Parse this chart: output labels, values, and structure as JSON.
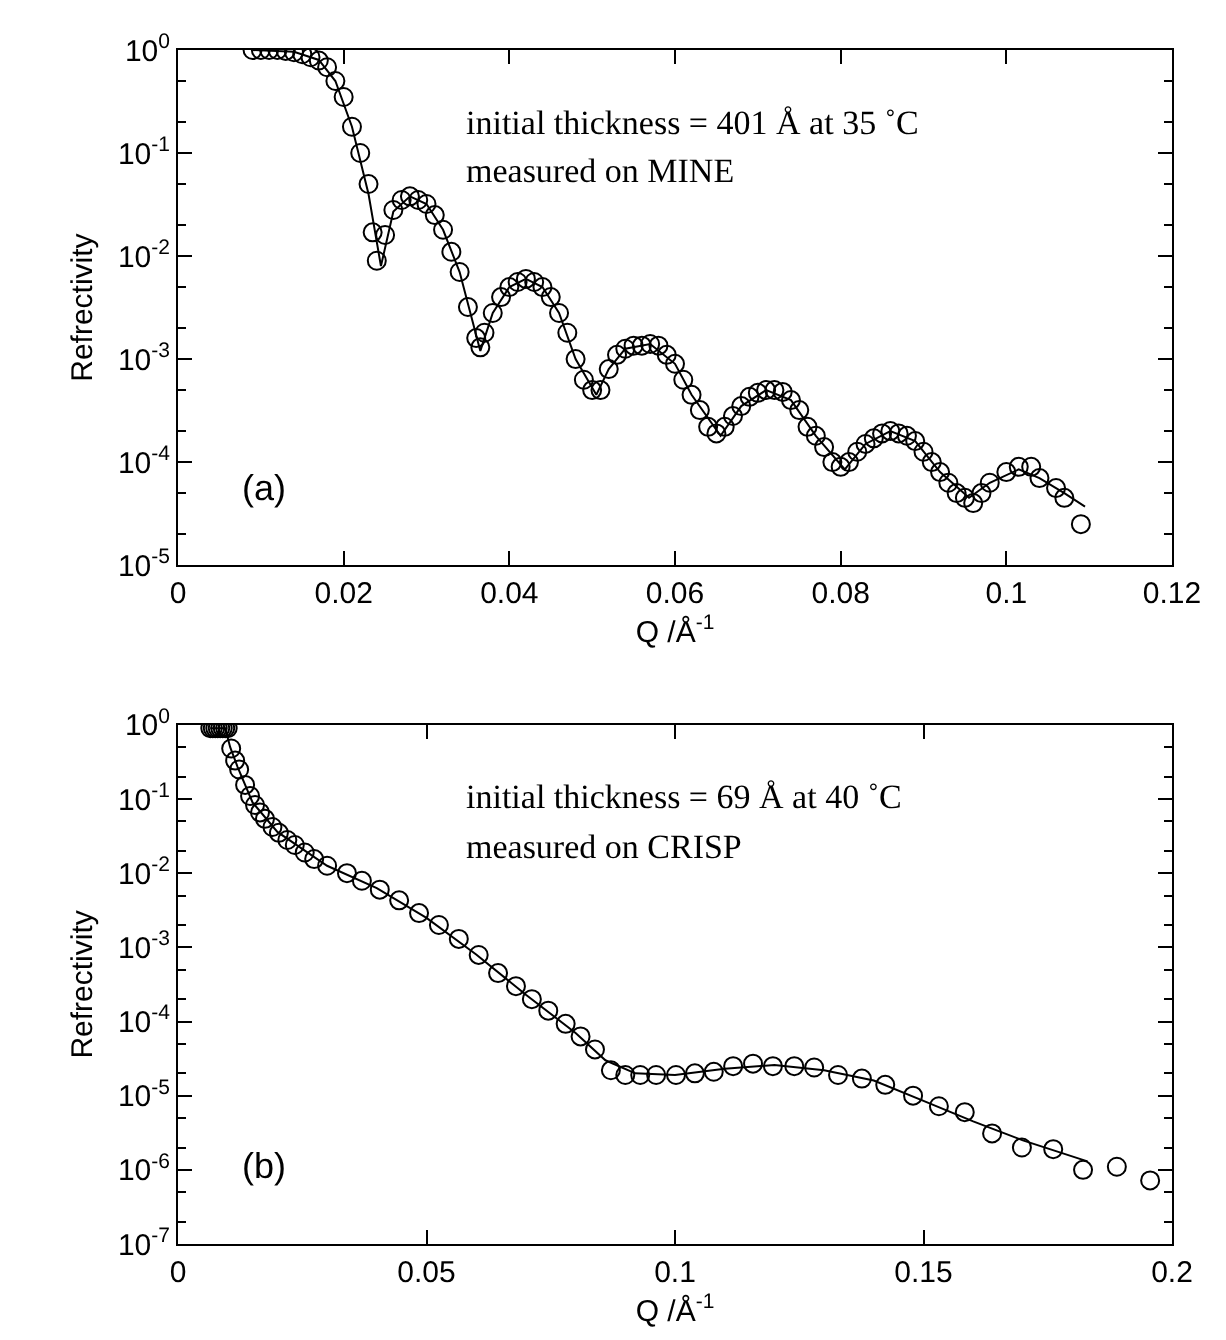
{
  "chart_data": [
    {
      "type": "scatter",
      "xlabel": "Q /Å$^{-1}$",
      "ylabel": "Refrectivity",
      "log": "y",
      "line_style": "solid",
      "annotations": [
        "initial thickness = 401 Å at 35 ˚C",
        "measured on MINE",
        "(a)"
      ],
      "xlim": [
        0,
        0.12
      ],
      "xticks": [
        0,
        0.02,
        0.04,
        0.06,
        0.08,
        0.1,
        0.12
      ],
      "ylim": [
        1e-05,
        1
      ],
      "yticks": [
        {
          "value": 1e-05,
          "label": "10$^{-5}$"
        },
        {
          "value": 0.0001,
          "label": "10$^{-4}$"
        },
        {
          "value": 0.001,
          "label": "10$^{-3}$"
        },
        {
          "value": 0.01,
          "label": "10$^{-2}$"
        },
        {
          "value": 0.1,
          "label": "10$^{-1}$"
        },
        {
          "value": 1,
          "label": "10$^{0}$"
        }
      ],
      "series": [
        {
          "marker": "circle",
          "color": "#000000",
          "x": [
            0.009,
            0.01,
            0.011,
            0.012,
            0.013,
            0.014,
            0.015,
            0.016,
            0.017,
            0.018,
            0.019,
            0.02,
            0.021,
            0.022,
            0.023,
            0.0235,
            0.024,
            0.025,
            0.026,
            0.027,
            0.028,
            0.029,
            0.03,
            0.031,
            0.032,
            0.033,
            0.034,
            0.035,
            0.036,
            0.0365,
            0.037,
            0.038,
            0.039,
            0.04,
            0.041,
            0.042,
            0.043,
            0.044,
            0.045,
            0.046,
            0.047,
            0.048,
            0.049,
            0.05,
            0.051,
            0.052,
            0.053,
            0.054,
            0.055,
            0.056,
            0.057,
            0.058,
            0.059,
            0.06,
            0.061,
            0.062,
            0.063,
            0.064,
            0.065,
            0.066,
            0.067,
            0.068,
            0.069,
            0.07,
            0.071,
            0.072,
            0.073,
            0.074,
            0.075,
            0.076,
            0.077,
            0.078,
            0.079,
            0.08,
            0.081,
            0.082,
            0.083,
            0.084,
            0.085,
            0.086,
            0.087,
            0.088,
            0.089,
            0.09,
            0.091,
            0.092,
            0.093,
            0.094,
            0.095,
            0.096,
            0.097,
            0.098,
            0.1,
            0.1015,
            0.103,
            0.104,
            0.106,
            0.107,
            0.109
          ],
          "values": [
            1,
            1,
            1,
            1,
            0.98,
            0.95,
            0.91,
            0.85,
            0.79,
            0.68,
            0.5,
            0.35,
            0.18,
            0.1,
            0.05,
            0.017,
            0.009,
            0.016,
            0.028,
            0.035,
            0.038,
            0.035,
            0.032,
            0.025,
            0.018,
            0.011,
            0.007,
            0.0032,
            0.0016,
            0.0013,
            0.0018,
            0.0028,
            0.004,
            0.005,
            0.0056,
            0.006,
            0.0056,
            0.005,
            0.004,
            0.0028,
            0.0018,
            0.001,
            0.00063,
            0.0005,
            0.0005,
            0.0008,
            0.0011,
            0.00126,
            0.00135,
            0.00135,
            0.0014,
            0.00135,
            0.0011,
            0.0009,
            0.00063,
            0.00045,
            0.00032,
            0.00022,
            0.00019,
            0.00022,
            0.00028,
            0.00035,
            0.00043,
            0.00047,
            0.0005,
            0.0005,
            0.00048,
            0.0004,
            0.00032,
            0.00022,
            0.00018,
            0.00014,
            0.0001,
            9e-05,
            0.0001,
            0.000126,
            0.00015,
            0.00017,
            0.00019,
            0.0002,
            0.00019,
            0.00018,
            0.00016,
            0.000126,
            0.0001,
            8e-05,
            6.3e-05,
            5e-05,
            4.5e-05,
            4e-05,
            5e-05,
            6.3e-05,
            8e-05,
            9e-05,
            9e-05,
            7e-05,
            5.6e-05,
            4.5e-05,
            2.5e-05
          ]
        },
        {
          "type": "line",
          "color": "#000000",
          "x": [
            0.009,
            0.014,
            0.017,
            0.019,
            0.021,
            0.023,
            0.0245,
            0.026,
            0.028,
            0.03,
            0.032,
            0.034,
            0.0365,
            0.038,
            0.04,
            0.042,
            0.044,
            0.046,
            0.048,
            0.0505,
            0.052,
            0.054,
            0.057,
            0.06,
            0.062,
            0.0655,
            0.068,
            0.071,
            0.074,
            0.077,
            0.0805,
            0.083,
            0.086,
            0.089,
            0.092,
            0.0955,
            0.098,
            0.1015,
            0.104,
            0.107,
            0.1095
          ],
          "values": [
            1,
            0.96,
            0.8,
            0.5,
            0.18,
            0.04,
            0.008,
            0.027,
            0.038,
            0.032,
            0.018,
            0.007,
            0.0012,
            0.0028,
            0.005,
            0.006,
            0.005,
            0.0028,
            0.001,
            0.00045,
            0.0008,
            0.00126,
            0.0014,
            0.0009,
            0.00045,
            0.00018,
            0.00035,
            0.0005,
            0.0004,
            0.00018,
            8.5e-05,
            0.00015,
            0.0002,
            0.00016,
            8e-05,
            4.5e-05,
            6.3e-05,
            8.5e-05,
            7e-05,
            5e-05,
            3.7e-05
          ]
        }
      ]
    },
    {
      "type": "scatter",
      "xlabel": "Q /Å$^{-1}$",
      "ylabel": "Refrectivity",
      "log": "y",
      "line_style": "solid",
      "annotations": [
        "initial thickness = 69 Å at 40 ˚C",
        "measured on CRISP",
        "(b)"
      ],
      "xlim": [
        0,
        0.2
      ],
      "xticks": [
        0,
        0.05,
        0.1,
        0.15,
        0.2
      ],
      "ylim": [
        1e-07,
        1
      ],
      "yticks": [
        {
          "value": 1e-07,
          "label": "10$^{-7}$"
        },
        {
          "value": 1e-06,
          "label": "10$^{-6}$"
        },
        {
          "value": 1e-05,
          "label": "10$^{-5}$"
        },
        {
          "value": 0.0001,
          "label": "10$^{-4}$"
        },
        {
          "value": 0.001,
          "label": "10$^{-3}$"
        },
        {
          "value": 0.01,
          "label": "10$^{-2}$"
        },
        {
          "value": 0.1,
          "label": "10$^{-1}$"
        },
        {
          "value": 1,
          "label": "10$^{0}$"
        }
      ],
      "series": [
        {
          "marker": "circle",
          "color": "#000000",
          "x": [
            0.0065,
            0.007,
            0.0075,
            0.008,
            0.0085,
            0.009,
            0.0095,
            0.01,
            0.0107,
            0.0115,
            0.0123,
            0.0135,
            0.0145,
            0.0155,
            0.0165,
            0.0175,
            0.019,
            0.0203,
            0.022,
            0.0235,
            0.0255,
            0.0274,
            0.03,
            0.034,
            0.037,
            0.0406,
            0.0445,
            0.0485,
            0.0525,
            0.0565,
            0.0605,
            0.0644,
            0.068,
            0.0712,
            0.0745,
            0.078,
            0.081,
            0.0839,
            0.0871,
            0.09,
            0.093,
            0.0962,
            0.1002,
            0.104,
            0.1078,
            0.1117,
            0.1157,
            0.1197,
            0.124,
            0.128,
            0.1328,
            0.1376,
            0.1423,
            0.1479,
            0.1531,
            0.1583,
            0.1638,
            0.1698,
            0.1761,
            0.1821,
            0.1889,
            0.1956
          ],
          "values": [
            0.9,
            0.9,
            0.9,
            0.9,
            0.9,
            0.9,
            0.9,
            0.9,
            0.48,
            0.33,
            0.25,
            0.155,
            0.11,
            0.083,
            0.066,
            0.054,
            0.042,
            0.035,
            0.028,
            0.024,
            0.019,
            0.0155,
            0.0126,
            0.01,
            0.0079,
            0.006,
            0.0043,
            0.0029,
            0.002,
            0.0013,
            0.00079,
            0.00045,
            0.0003,
            0.0002,
            0.00014,
            9.3e-05,
            6.3e-05,
            4.2e-05,
            2.2e-05,
            1.9e-05,
            1.9e-05,
            1.9e-05,
            1.9e-05,
            2e-05,
            2.1e-05,
            2.5e-05,
            2.7e-05,
            2.5e-05,
            2.5e-05,
            2.4e-05,
            1.9e-05,
            1.7e-05,
            1.4e-05,
            1e-05,
            7.2e-06,
            6e-06,
            3.1e-06,
            2e-06,
            1.9e-06,
            1e-06,
            1.1e-06,
            7.2e-07
          ]
        },
        {
          "type": "line",
          "color": "#000000",
          "x": [
            0.0065,
            0.0095,
            0.0105,
            0.012,
            0.015,
            0.02,
            0.03,
            0.04,
            0.05,
            0.06,
            0.07,
            0.08,
            0.086,
            0.092,
            0.1,
            0.11,
            0.12,
            0.13,
            0.14,
            0.15,
            0.16,
            0.17,
            0.183
          ],
          "values": [
            0.9,
            0.9,
            0.5,
            0.27,
            0.09,
            0.036,
            0.0126,
            0.0063,
            0.0025,
            0.0008,
            0.00023,
            7e-05,
            3e-05,
            2e-05,
            1.9e-05,
            2.3e-05,
            2.6e-05,
            2.2e-05,
            1.6e-05,
            8.5e-06,
            4.5e-06,
            2.5e-06,
            1.3e-06
          ]
        }
      ]
    }
  ]
}
